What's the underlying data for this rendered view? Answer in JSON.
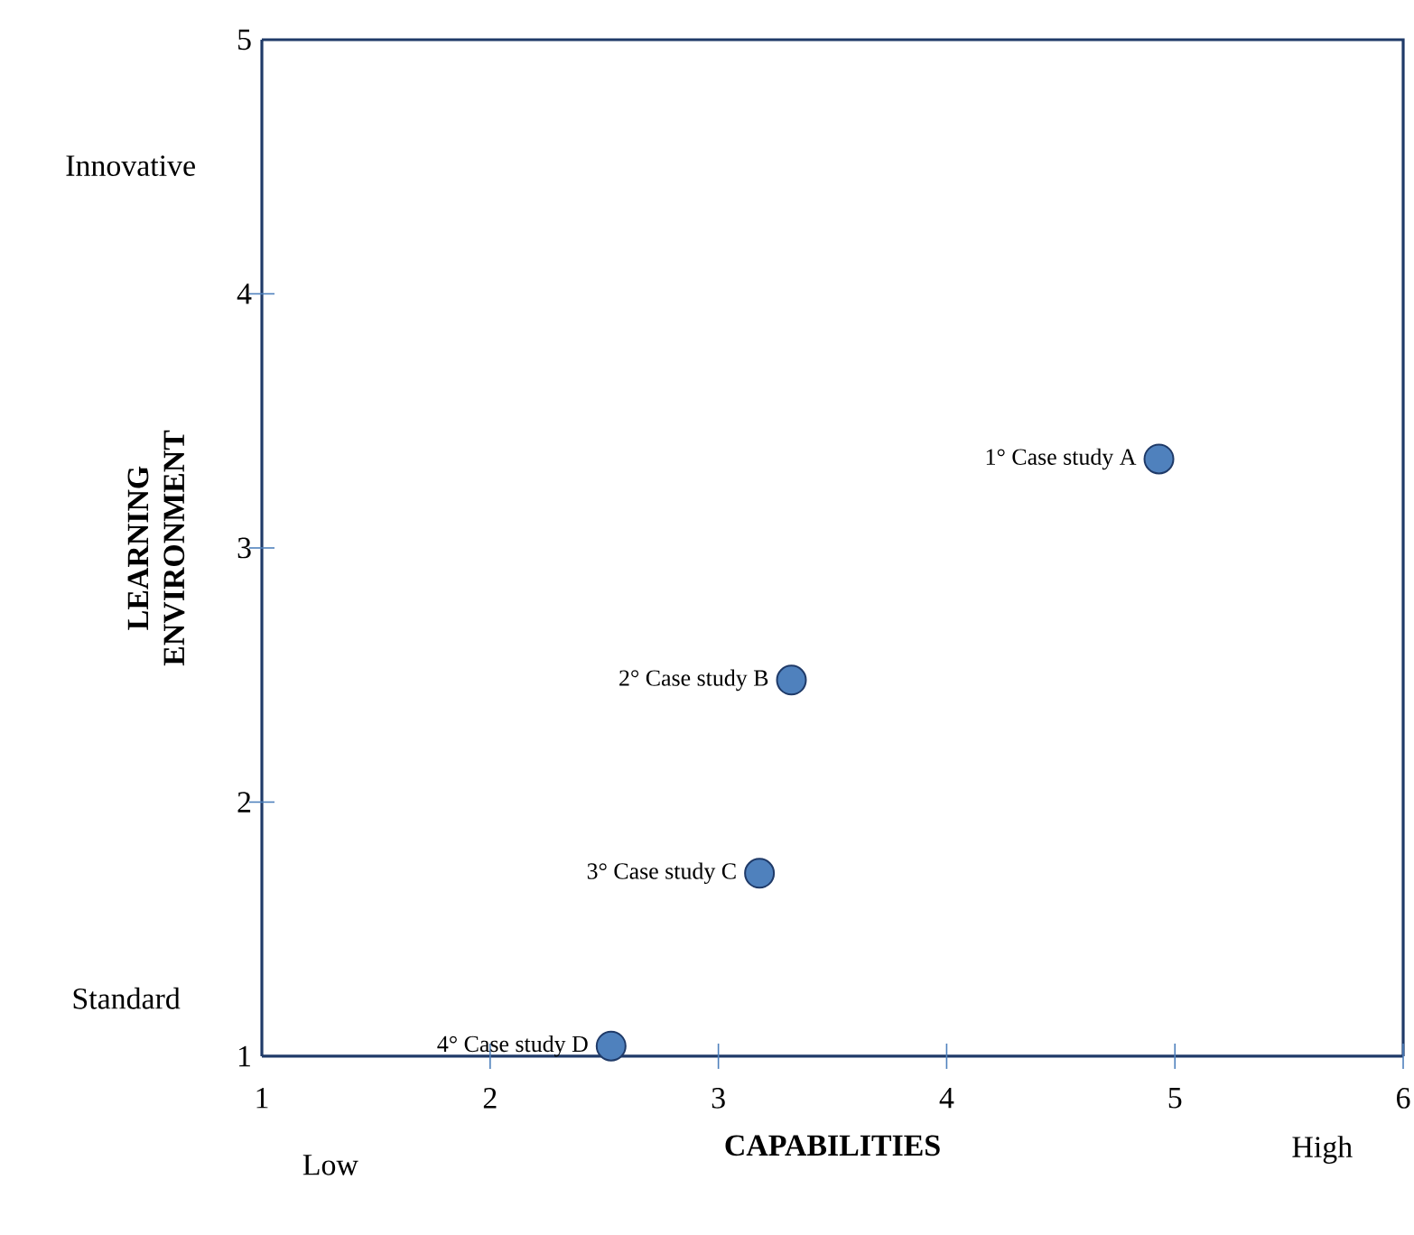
{
  "chart_data": {
    "type": "scatter",
    "xlabel": "CAPABILITIES",
    "ylabel": "LEARNING ENVIRONMENT",
    "xlim": [
      1,
      6
    ],
    "ylim": [
      1,
      5
    ],
    "xticks": [
      1,
      2,
      3,
      4,
      5,
      6
    ],
    "yticks": [
      1,
      2,
      3,
      4,
      5
    ],
    "marker": "circle",
    "series": [
      {
        "color": "#4f81bd",
        "x": [
          4.93,
          3.32,
          3.18,
          2.53
        ],
        "values": [
          3.35,
          2.48,
          1.72,
          1.04
        ]
      }
    ],
    "annotations": [
      {
        "text": "1° Case study A",
        "x": 4.93,
        "y": 3.35
      },
      {
        "text": "2° Case study B",
        "x": 3.32,
        "y": 2.48
      },
      {
        "text": "3° Case study C",
        "x": 3.18,
        "y": 1.72
      },
      {
        "text": "4° Case study D",
        "x": 2.53,
        "y": 1.04
      },
      "Innovative",
      "Standard",
      "Low",
      "High"
    ]
  }
}
